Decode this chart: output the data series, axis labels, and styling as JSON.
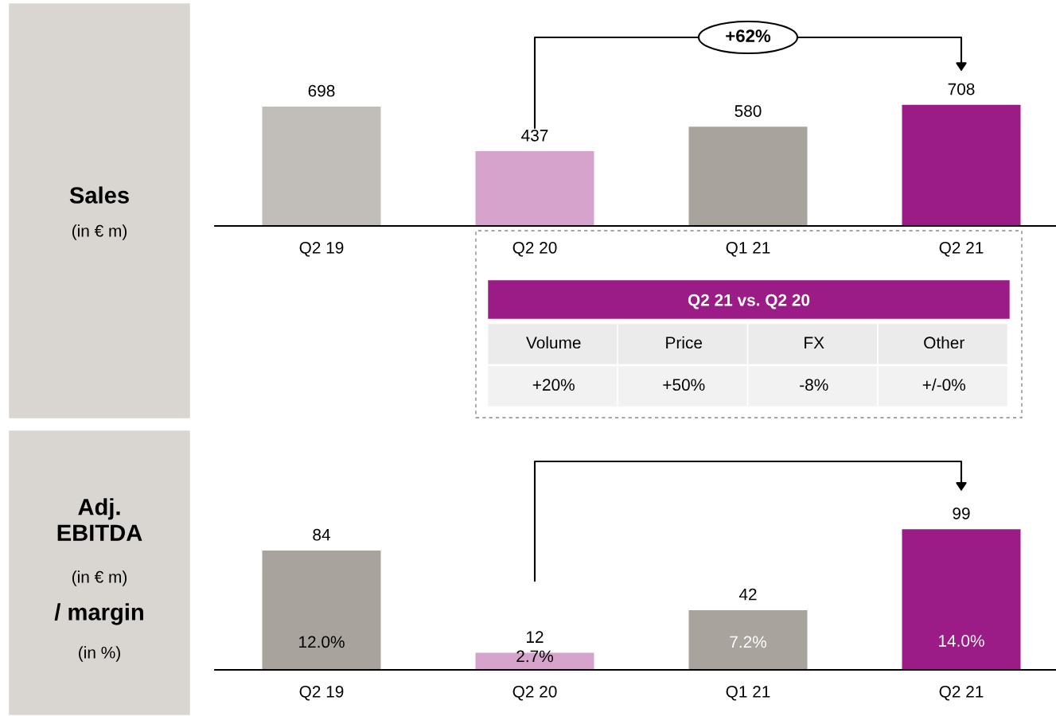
{
  "chart_data": [
    {
      "type": "bar",
      "ylabel": "Sales",
      "subtitle": "(in € m)",
      "categories": [
        "Q2 19",
        "Q2 20",
        "Q1 21",
        "Q2 21"
      ],
      "values": [
        698,
        437,
        580,
        708
      ],
      "colors": [
        "#c1beb9",
        "#d5a3cc",
        "#a8a39d",
        "#9c1c87"
      ],
      "data_labels": true,
      "annotations": [
        "+62%"
      ]
    },
    {
      "type": "bar",
      "ylabel": "Adj. EBITDA",
      "subtitle": "(in € m)",
      "categories": [
        "Q2 19",
        "Q2 20",
        "Q1 21",
        "Q2 21"
      ],
      "values": [
        84,
        12,
        42,
        99
      ],
      "colors": [
        "#a8a39d",
        "#d5a3cc",
        "#a8a39d",
        "#9c1c87"
      ],
      "data_labels": true,
      "annotations": [
        "/ margin",
        "(in %)",
        "12.0%",
        "2.7%",
        "7.2%",
        "14.0%"
      ]
    },
    {
      "type": "other",
      "title": "Q2 21 vs. Q2 20",
      "annotations": [
        "Volume",
        "Price",
        "FX",
        "Other",
        "+20%",
        "+50%",
        "-8%",
        "+/-0%"
      ]
    }
  ]
}
